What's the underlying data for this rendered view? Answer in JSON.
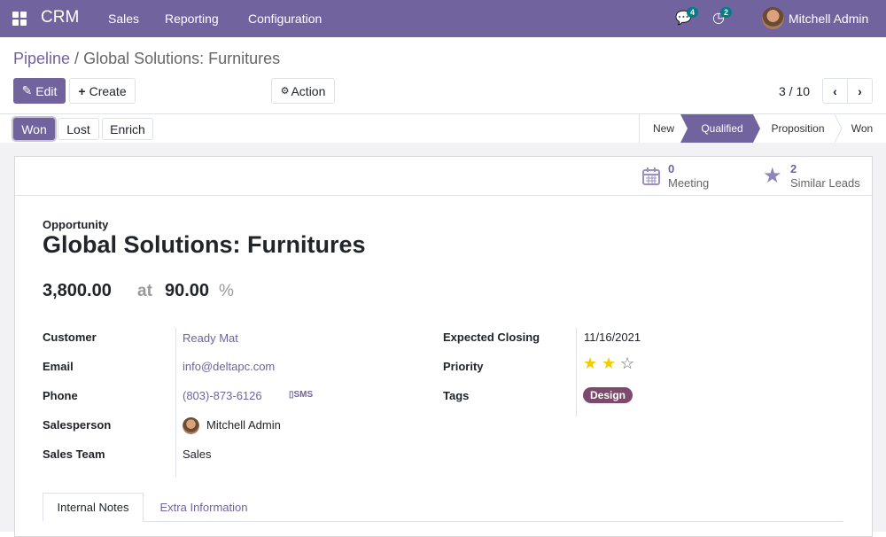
{
  "nav": {
    "app": "CRM",
    "menu": [
      "Sales",
      "Reporting",
      "Configuration"
    ],
    "messages_count": "4",
    "activities_count": "2",
    "user": "Mitchell Admin",
    "color": "#71639e"
  },
  "breadcrumb": {
    "parent": "Pipeline",
    "current": "Global Solutions: Furnitures"
  },
  "toolbar": {
    "edit": "Edit",
    "create": "Create",
    "action": "Action",
    "pager": "3 / 10"
  },
  "status_buttons": [
    "Won",
    "Lost",
    "Enrich"
  ],
  "stages": [
    "New",
    "Qualified",
    "Proposition",
    "Won"
  ],
  "active_stage": "Qualified",
  "smart_buttons": {
    "meeting_count": "0",
    "meeting_label": "Meeting",
    "similar_count": "2",
    "similar_label": "Similar Leads"
  },
  "record": {
    "type": "Opportunity",
    "name": "Global Solutions: Furnitures",
    "revenue": "3,800.00",
    "at": "at",
    "probability": "90.00",
    "percent": "%",
    "left": [
      {
        "label": "Customer",
        "value": "Ready Mat"
      },
      {
        "label": "Email",
        "value": "info@deltapc.com"
      },
      {
        "label": "Phone",
        "value": "(803)-873-6126"
      },
      {
        "label": "Salesperson",
        "value": "Mitchell Admin"
      },
      {
        "label": "Sales Team",
        "value": "Sales"
      }
    ],
    "sms": "SMS",
    "right": [
      {
        "label": "Expected Closing",
        "value": "11/16/2021"
      },
      {
        "label": "Priority",
        "stars": 2,
        "max": 3
      },
      {
        "label": "Tags",
        "value": "Design"
      }
    ]
  },
  "tabs": [
    "Internal Notes",
    "Extra Information"
  ],
  "active_tab": "Internal Notes"
}
